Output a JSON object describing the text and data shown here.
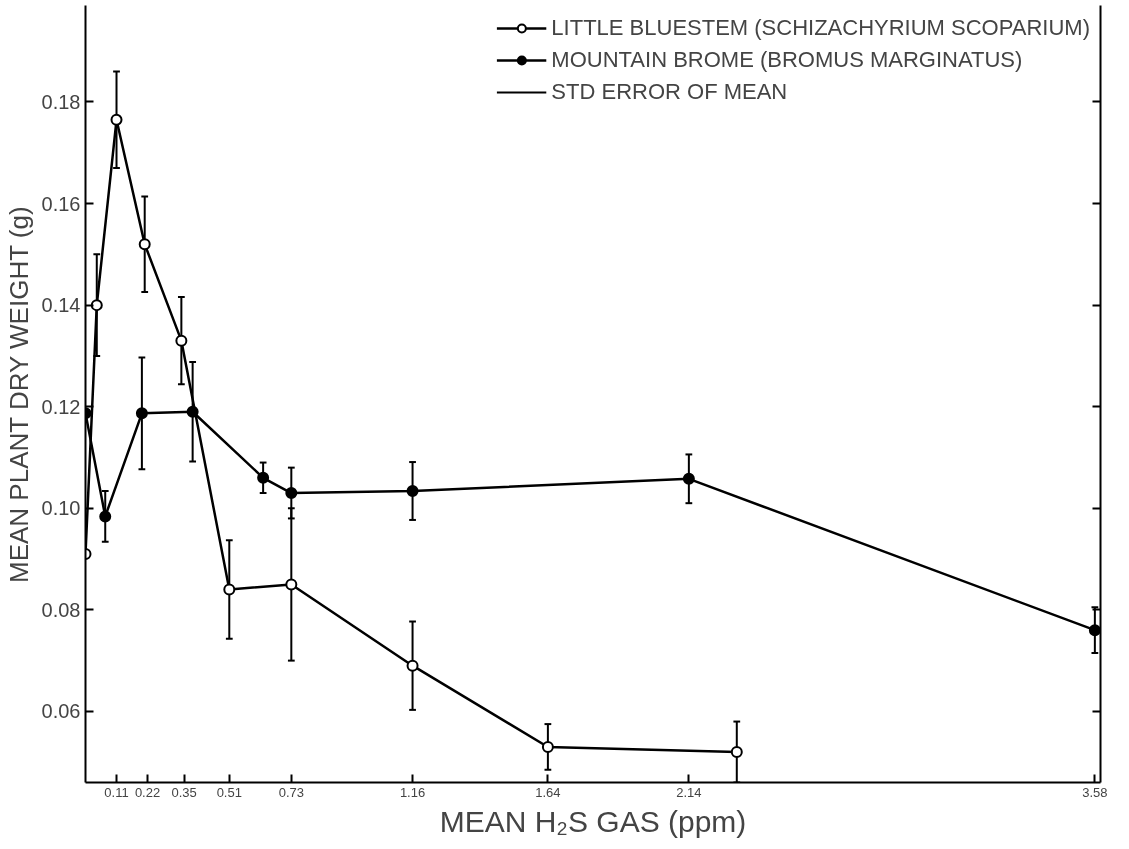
{
  "chart_data": {
    "type": "line",
    "xlabel": "MEAN H₂S GAS (ppm)",
    "ylabel": "MEAN PLANT DRY WEIGHT (g)",
    "xlim": [
      0,
      3.6
    ],
    "ylim": [
      0.046,
      0.199
    ],
    "xticks": [
      0.11,
      0.22,
      0.35,
      0.51,
      0.73,
      1.16,
      1.64,
      2.14,
      3.58
    ],
    "yticks": [
      0.06,
      0.08,
      {
        "value": 0.1,
        "label": "0.10"
      },
      0.12,
      0.14,
      0.16,
      0.18
    ],
    "series": [
      {
        "name": "LITTLE BLUESTEM (SCHIZACHYRIUM SCOPARIUM)",
        "color": "#000000",
        "x": [
          0,
          0.04,
          0.11,
          0.21,
          0.34,
          0.51,
          0.73,
          1.16,
          1.64,
          2.31
        ],
        "values": [
          0.091,
          0.14,
          0.1765,
          0.152,
          0.133,
          0.084,
          0.085,
          0.069,
          0.053,
          0.052
        ],
        "errors": [
          null,
          0.01,
          0.0095,
          0.0094,
          0.0086,
          0.0097,
          0.015,
          0.0087,
          0.0045,
          0.006
        ]
      },
      {
        "name": "MOUNTAIN BROME (BROMUS MARGINATUS)",
        "color": "#000000",
        "x": [
          0,
          0.07,
          0.2,
          0.38,
          0.63,
          0.73,
          1.16,
          2.14,
          3.58
        ],
        "values": [
          0.1187,
          0.0984,
          0.1187,
          0.119,
          0.106,
          0.103,
          0.1034,
          0.1058,
          0.076
        ],
        "errors": [
          null,
          0.005,
          0.011,
          0.0098,
          0.003,
          0.005,
          0.0057,
          0.0048,
          0.0045
        ]
      }
    ],
    "annotations": [
      "STD ERROR OF MEAN"
    ],
    "marker": "circle",
    "line_style": "solid",
    "legend": "top right",
    "grid": false
  }
}
